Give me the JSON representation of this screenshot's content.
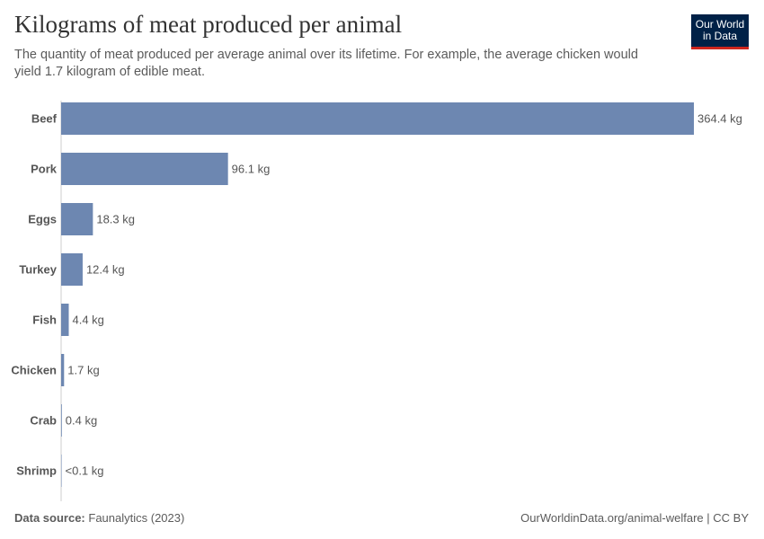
{
  "header": {
    "title": "Kilograms of meat produced per animal",
    "subtitle": "The quantity of meat produced per average animal over its lifetime. For example, the average chicken would yield 1.7 kilogram of edible meat.",
    "logo_line1": "Our World",
    "logo_line2": "in Data"
  },
  "chart_data": {
    "type": "bar",
    "orientation": "horizontal",
    "title": "Kilograms of meat produced per animal",
    "categories": [
      "Beef",
      "Pork",
      "Eggs",
      "Turkey",
      "Fish",
      "Chicken",
      "Crab",
      "Shrimp"
    ],
    "values": [
      364.4,
      96.1,
      18.3,
      12.4,
      4.4,
      1.7,
      0.4,
      0.05
    ],
    "labels": [
      "364.4 kg",
      "96.1 kg",
      "18.3 kg",
      "12.4 kg",
      "4.4 kg",
      "1.7 kg",
      "0.4 kg",
      "<0.1 kg"
    ],
    "unit": "kg",
    "xlim": [
      0,
      364.4
    ],
    "grid": false,
    "bar_color": "#6d87b1"
  },
  "footer": {
    "source_label": "Data source:",
    "source": "Faunalytics (2023)",
    "credit": "OurWorldinData.org/animal-welfare | CC BY"
  }
}
